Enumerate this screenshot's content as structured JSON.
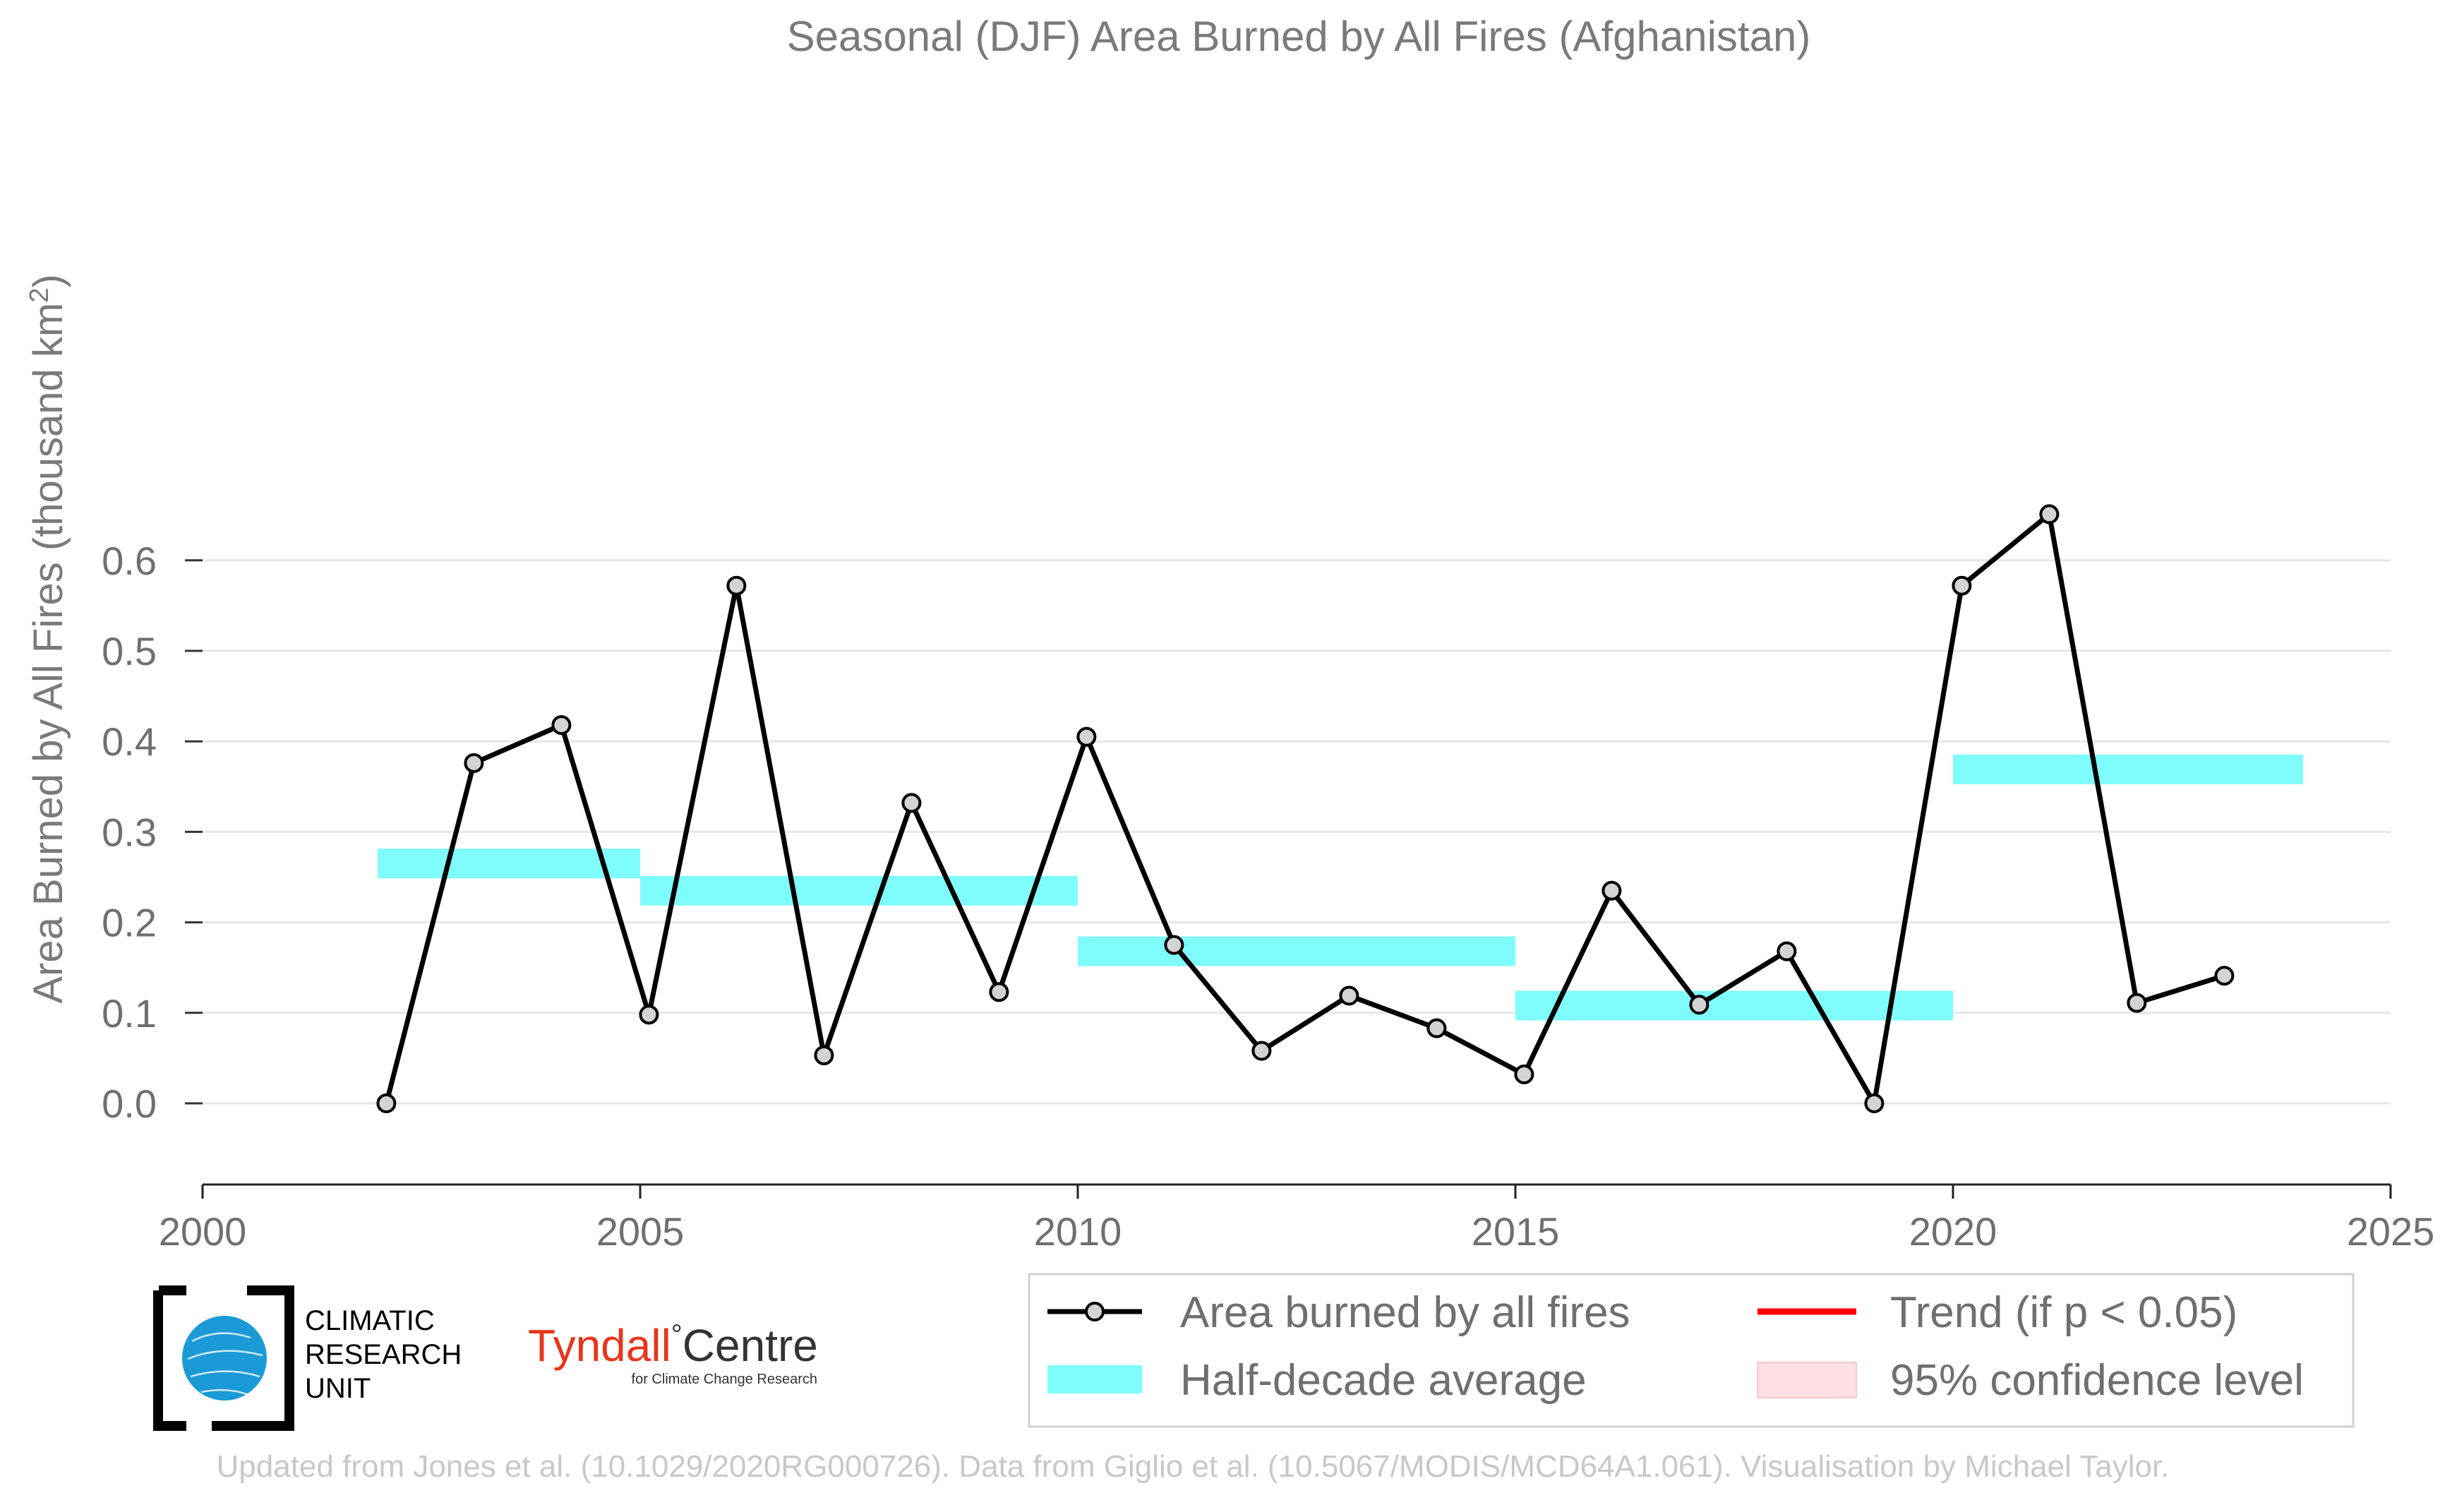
{
  "chart_data": {
    "type": "line",
    "title": "Seasonal (DJF) Area Burned by All Fires (Afghanistan)",
    "ylabel": "Area Burned by All Fires (thousand km",
    "ylabel_sup": "2",
    "ylabel_close": ")",
    "xlabel": "",
    "xlim": [
      2000,
      2025
    ],
    "ylim": [
      -0.05,
      0.65
    ],
    "xticks": [
      "2000",
      "2005",
      "2010",
      "2015",
      "2020",
      "2025"
    ],
    "yticks": [
      "0.0",
      "0.1",
      "0.2",
      "0.3",
      "0.4",
      "0.5",
      "0.6"
    ],
    "grid": true,
    "series": [
      {
        "name": "Area burned by all fires",
        "color": "#000000",
        "marker_fill": "#d3d3d3",
        "x": [
          2002.1,
          2003.1,
          2004.1,
          2005.1,
          2006.1,
          2007.1,
          2008.1,
          2009.1,
          2010.1,
          2011.1,
          2012.1,
          2013.1,
          2014.1,
          2015.1,
          2016.1,
          2017.1,
          2018.1,
          2019.1,
          2020.1,
          2021.1,
          2022.1,
          2023.1
        ],
        "values": [
          0.0,
          0.376,
          0.418,
          0.098,
          0.572,
          0.053,
          0.332,
          0.123,
          0.405,
          0.175,
          0.058,
          0.119,
          0.083,
          0.032,
          0.235,
          0.109,
          0.168,
          0.0,
          0.572,
          0.651,
          0.111,
          0.141
        ]
      }
    ],
    "half_decade_average": {
      "name": "Half-decade average",
      "color": "#7ffcfc",
      "segments": [
        {
          "x0": 2002,
          "x1": 2005,
          "value": 0.265
        },
        {
          "x0": 2005,
          "x1": 2010,
          "value": 0.235
        },
        {
          "x0": 2010,
          "x1": 2015,
          "value": 0.168
        },
        {
          "x0": 2015,
          "x1": 2020,
          "value": 0.108
        },
        {
          "x0": 2020,
          "x1": 2024,
          "value": 0.369
        }
      ]
    },
    "legend": {
      "placement": "bottom-right",
      "items": [
        {
          "label": "Area burned by all fires",
          "kind": "line-marker",
          "color": "#000000"
        },
        {
          "label": "Trend (if p < 0.05)",
          "kind": "line",
          "color": "#ff0000"
        },
        {
          "label": "Half-decade average",
          "kind": "band",
          "color": "#7ffcfc"
        },
        {
          "label": "95% confidence level",
          "kind": "patch",
          "color": "#ffe0e4"
        }
      ]
    }
  },
  "logos": {
    "cru_lines": [
      "CLIMATIC",
      "RESEARCH",
      "UNIT"
    ],
    "tyndall_name": "Tyndall",
    "tyndall_degree": "°",
    "tyndall_centre": "Centre",
    "tyndall_sub": "for Climate Change Research"
  },
  "footer": "Updated from Jones et al. (10.1029/2020RG000726). Data from Giglio et al. (10.5067/MODIS/MCD64A1.061). Visualisation by Michael Taylor."
}
